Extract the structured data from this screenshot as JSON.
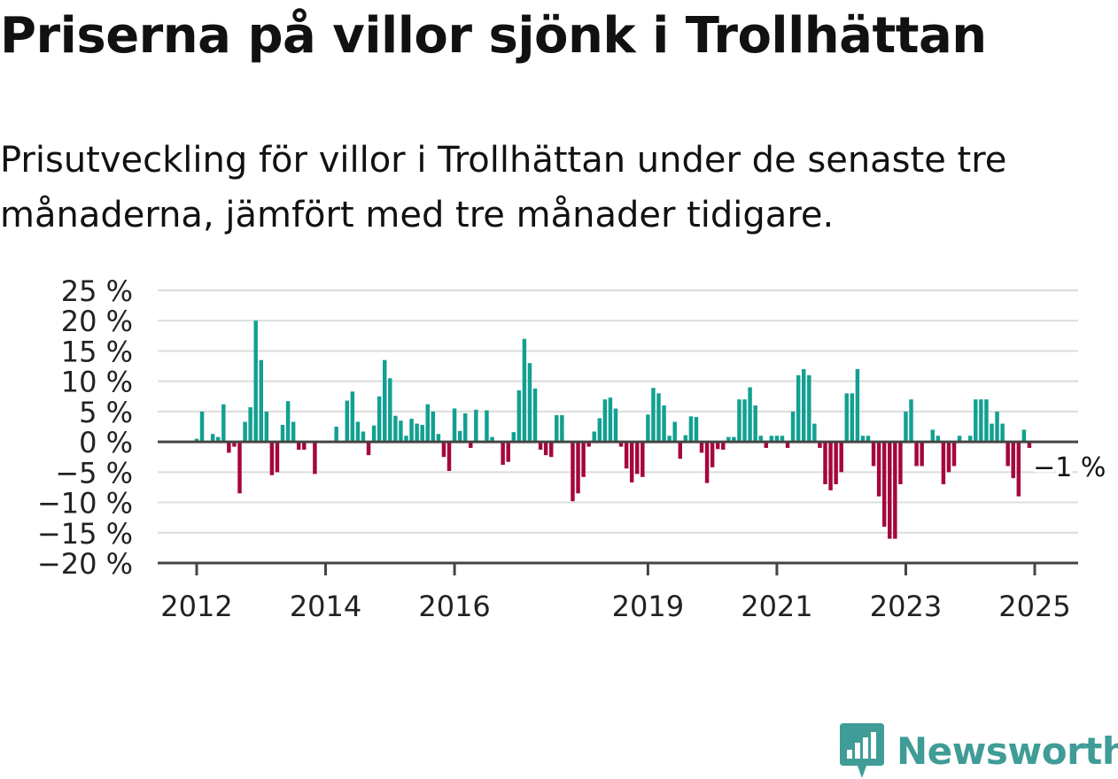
{
  "title": "Priserna på villor sjönk i Trollhättan",
  "subtitle": "Prisutveckling för villor i Trollhättan under de senaste tre månaderna, jämfört med tre månader tidigare.",
  "brand": {
    "name": "Newsworthy",
    "icon": "newsworthy-logo-icon",
    "color": "#3f9c97"
  },
  "colors": {
    "positive": "#12a092",
    "negative": "#a5063d",
    "grid": "#dcdcdc",
    "axis": "#444444",
    "tick_text": "#222222"
  },
  "chart_data": {
    "type": "bar",
    "title": "",
    "xlabel": "",
    "ylabel": "",
    "ylim": [
      -20,
      25
    ],
    "yticks": [
      25,
      20,
      15,
      10,
      5,
      0,
      -5,
      -10,
      -15,
      -20
    ],
    "ytick_labels": [
      "25 %",
      "20 %",
      "15 %",
      "10 %",
      "5 %",
      "0 %",
      "−5 %",
      "−10 %",
      "−15 %",
      "−20 %"
    ],
    "xtick_labels": [
      "2012",
      "2014",
      "2016",
      "2019",
      "2021",
      "2023",
      "2025"
    ],
    "xtick_dates": [
      "2012-01",
      "2014-01",
      "2016-01",
      "2019-01",
      "2021-01",
      "2023-01",
      "2025-01"
    ],
    "start": "2012-01",
    "end": "2025-03",
    "grid": true,
    "annotation": {
      "text": "−1 %",
      "date": "2025-03",
      "value": -1
    },
    "series": [
      {
        "values": [
          0.5,
          5,
          0,
          1.3,
          0.8,
          6.2,
          -1.8,
          -0.8,
          -8.5,
          3.3,
          5.7,
          20,
          13.5,
          5,
          -5.5,
          -5,
          2.8,
          6.7,
          3.3,
          -1.3,
          -1.3,
          0,
          -5.3,
          0,
          0,
          0,
          2.5,
          0,
          6.8,
          8.3,
          3.3,
          1.7,
          -2.2,
          2.7,
          7.5,
          13.5,
          10.5,
          4.3,
          3.5,
          1.0,
          3.8,
          3.0,
          2.8,
          6.2,
          5,
          1.3,
          -2.5,
          -4.8,
          5.5,
          1.8,
          4.7,
          -1.0,
          5.3,
          0,
          5.2,
          0.8,
          0,
          -3.8,
          -3.3,
          1.6,
          8.5,
          17,
          13,
          8.8,
          -1.3,
          -2.2,
          -2.5,
          4.4,
          4.4,
          0,
          -9.8,
          -8.5,
          -5.8,
          -0.8,
          1.7,
          3.9,
          7,
          7.3,
          5.5,
          -0.8,
          -4.4,
          -6.7,
          -5.3,
          -5.8,
          4.5,
          8.9,
          8,
          6,
          1,
          3.3,
          -2.8,
          1.1,
          4.2,
          4.1,
          -1.8,
          -6.8,
          -4.2,
          -1.2,
          -1.3,
          0.8,
          0.8,
          7,
          7,
          9,
          6,
          1,
          -1,
          1,
          1,
          1,
          -1,
          5,
          11,
          12,
          11,
          3,
          -1,
          -7,
          -8,
          -7,
          -5,
          8,
          8,
          12,
          1,
          1,
          -4,
          -9,
          -14,
          -16,
          -16,
          -7,
          5,
          7,
          -4,
          -4,
          0,
          2,
          1,
          -7,
          -5,
          -4,
          1,
          0,
          1,
          7,
          7,
          7,
          3,
          5,
          3,
          -4,
          -6,
          -9,
          2,
          -1
        ]
      }
    ]
  }
}
